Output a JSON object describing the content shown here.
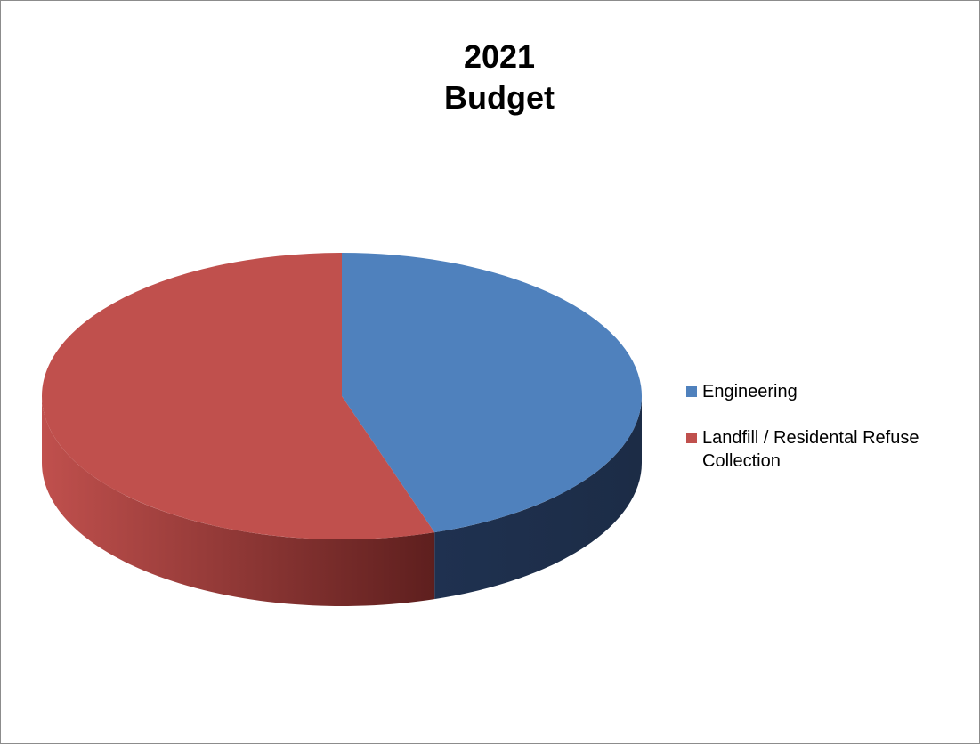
{
  "chart_data": {
    "type": "pie",
    "title_lines": [
      "2021",
      "Budget"
    ],
    "categories": [
      "Engineering",
      "Landfill / Residental Refuse Collection"
    ],
    "values": [
      45,
      55
    ],
    "colors": [
      "#4f81bd",
      "#c0504d"
    ],
    "side_colors": [
      "#1f3150",
      "#8a2f2d"
    ],
    "start_angle_deg": -90,
    "legend_position": "right",
    "three_d": true
  }
}
